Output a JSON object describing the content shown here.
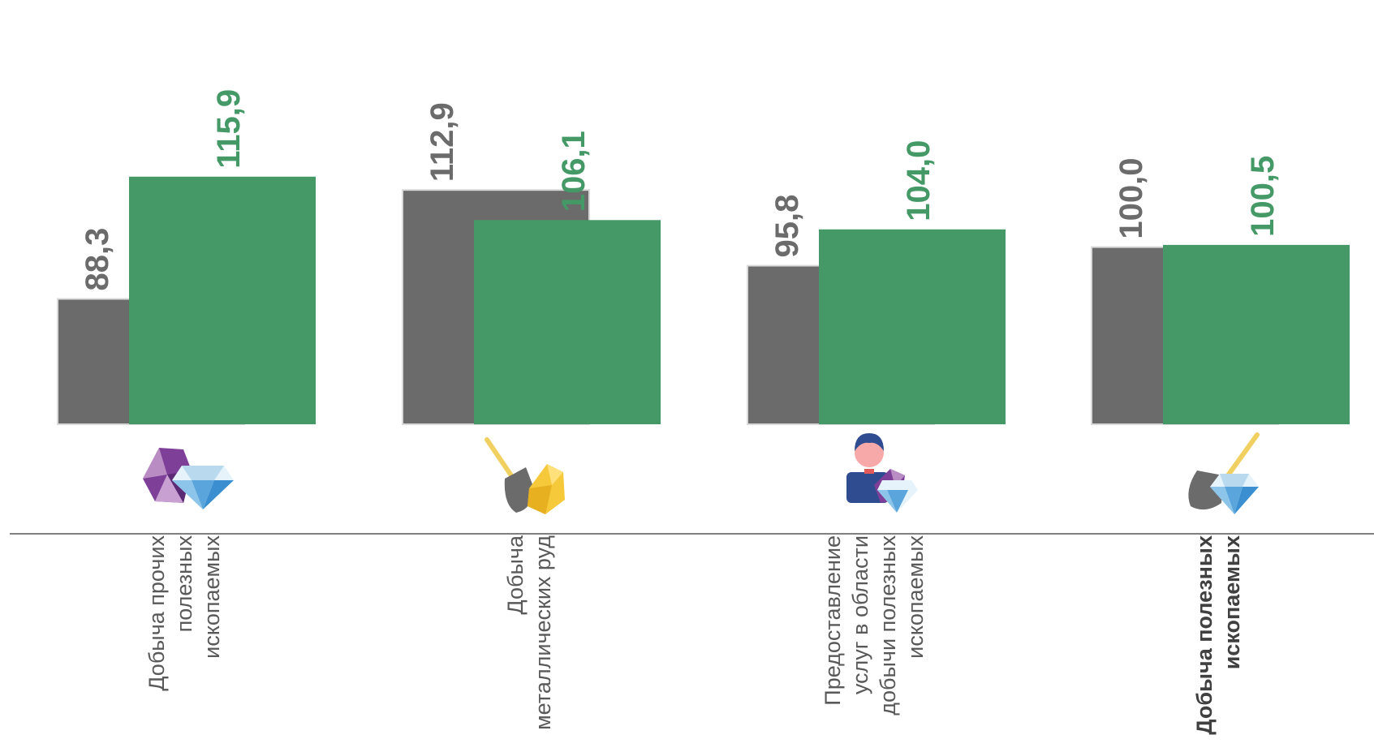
{
  "chart_data": {
    "type": "bar",
    "categories": [
      [
        "Добыча прочих",
        "полезных",
        "ископаемых"
      ],
      [
        "Добыча",
        "металлических руд"
      ],
      [
        "Предоставление",
        "услуг в области",
        "добычи полезных",
        "ископаемых"
      ],
      [
        "Добыча полезных",
        "ископаемых"
      ]
    ],
    "series": [
      {
        "values": [
          88.3,
          112.9,
          95.8,
          100.0
        ],
        "labels": [
          "88,3",
          "112,9",
          "95,8",
          "100,0"
        ]
      },
      {
        "values": [
          115.9,
          106.1,
          104.0,
          100.5
        ],
        "labels": [
          "115,9",
          "106,1",
          "104,0",
          "100,5"
        ]
      }
    ],
    "colors": {
      "series_0": "#6b6b6b",
      "series_1": "#449966",
      "axis": "#808080",
      "label_0": "#6b6b6b",
      "label_1": "#449966"
    },
    "icons": [
      "gems-icon",
      "shovel-gold-ore-icon",
      "worker-gems-icon",
      "shovel-diamond-icon"
    ],
    "bold_category_index": 3,
    "grid": false,
    "legend": "none"
  }
}
